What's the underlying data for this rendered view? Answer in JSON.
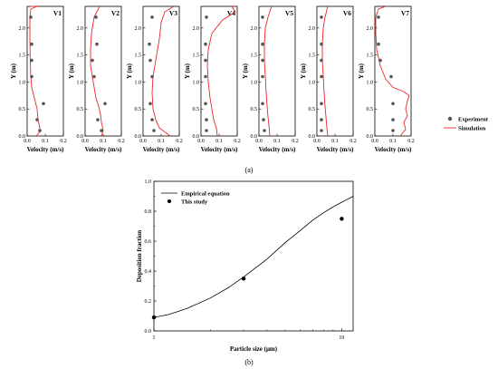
{
  "figure": {
    "caption_a": "(a)",
    "caption_b": "(b)"
  },
  "legend_top": {
    "experiment": "Experiment",
    "simulation": "Simulation"
  },
  "colors": {
    "simulation_line": "#e8262a",
    "experiment_marker": "#555555",
    "axis": "#000000"
  },
  "chart_data": [
    {
      "type": "line",
      "panels": [
        {
          "name": "V1",
          "experiment": [
            [
              0.02,
              2.2
            ],
            [
              0.025,
              1.7
            ],
            [
              0.025,
              1.4
            ],
            [
              0.025,
              1.1
            ],
            [
              0.09,
              0.6
            ],
            [
              0.055,
              0.3
            ],
            [
              0.07,
              0.1
            ]
          ],
          "simulation": [
            [
              0.015,
              2.4
            ],
            [
              0.055,
              2.4
            ],
            [
              0.02,
              2.35
            ],
            [
              0.015,
              2.2
            ],
            [
              0.015,
              1.8
            ],
            [
              0.017,
              1.4
            ],
            [
              0.02,
              1.1
            ],
            [
              0.025,
              0.9
            ],
            [
              0.04,
              0.7
            ],
            [
              0.055,
              0.5
            ],
            [
              0.06,
              0.3
            ],
            [
              0.07,
              0.15
            ],
            [
              0.07,
              0.08
            ],
            [
              0.05,
              0.0
            ]
          ]
        },
        {
          "name": "V2",
          "experiment": [
            [
              0.06,
              2.2
            ],
            [
              0.065,
              1.7
            ],
            [
              0.04,
              1.4
            ],
            [
              0.05,
              1.1
            ],
            [
              0.11,
              0.6
            ],
            [
              0.07,
              0.3
            ],
            [
              0.09,
              0.1
            ]
          ],
          "simulation": [
            [
              0.08,
              2.4
            ],
            [
              0.05,
              2.2
            ],
            [
              0.035,
              1.9
            ],
            [
              0.03,
              1.6
            ],
            [
              0.03,
              1.3
            ],
            [
              0.04,
              1.1
            ],
            [
              0.05,
              0.9
            ],
            [
              0.06,
              0.7
            ],
            [
              0.075,
              0.55
            ],
            [
              0.085,
              0.4
            ],
            [
              0.09,
              0.25
            ],
            [
              0.1,
              0.1
            ],
            [
              0.09,
              0.0
            ]
          ]
        },
        {
          "name": "V3",
          "experiment": [
            [
              0.05,
              2.2
            ],
            [
              0.035,
              1.7
            ],
            [
              0.04,
              1.4
            ],
            [
              0.05,
              1.1
            ],
            [
              0.04,
              0.6
            ],
            [
              0.05,
              0.3
            ],
            [
              0.06,
              0.1
            ]
          ],
          "simulation": [
            [
              0.17,
              2.4
            ],
            [
              0.12,
              2.3
            ],
            [
              0.1,
              2.1
            ],
            [
              0.09,
              1.8
            ],
            [
              0.07,
              1.4
            ],
            [
              0.055,
              1.1
            ],
            [
              0.05,
              0.8
            ],
            [
              0.055,
              0.5
            ],
            [
              0.07,
              0.3
            ],
            [
              0.09,
              0.15
            ],
            [
              0.13,
              0.05
            ],
            [
              0.15,
              0.0
            ]
          ]
        },
        {
          "name": "V4",
          "experiment": [
            [
              0.03,
              2.2
            ],
            [
              0.025,
              1.7
            ],
            [
              0.025,
              1.4
            ],
            [
              0.025,
              1.1
            ],
            [
              0.025,
              0.6
            ],
            [
              0.03,
              0.3
            ],
            [
              0.03,
              0.1
            ]
          ],
          "simulation": [
            [
              0.17,
              2.4
            ],
            [
              0.19,
              2.3
            ],
            [
              0.12,
              2.15
            ],
            [
              0.06,
              1.9
            ],
            [
              0.04,
              1.6
            ],
            [
              0.035,
              1.3
            ],
            [
              0.04,
              1.0
            ],
            [
              0.05,
              0.7
            ],
            [
              0.06,
              0.5
            ],
            [
              0.07,
              0.3
            ],
            [
              0.085,
              0.15
            ],
            [
              0.09,
              0.0
            ]
          ]
        },
        {
          "name": "V5",
          "experiment": [
            [
              0.02,
              2.2
            ],
            [
              0.02,
              1.7
            ],
            [
              0.02,
              1.4
            ],
            [
              0.02,
              1.1
            ],
            [
              0.02,
              0.6
            ],
            [
              0.025,
              0.3
            ],
            [
              0.03,
              0.1
            ]
          ],
          "simulation": [
            [
              0.07,
              2.4
            ],
            [
              0.05,
              2.2
            ],
            [
              0.035,
              2.0
            ],
            [
              0.03,
              1.7
            ],
            [
              0.03,
              1.4
            ],
            [
              0.035,
              1.1
            ],
            [
              0.04,
              0.8
            ],
            [
              0.045,
              0.55
            ],
            [
              0.05,
              0.35
            ],
            [
              0.055,
              0.2
            ],
            [
              0.06,
              0.0
            ]
          ]
        },
        {
          "name": "V6",
          "experiment": [
            [
              0.025,
              2.2
            ],
            [
              0.025,
              1.7
            ],
            [
              0.025,
              1.4
            ],
            [
              0.025,
              1.1
            ],
            [
              0.025,
              0.6
            ],
            [
              0.025,
              0.3
            ],
            [
              0.025,
              0.1
            ]
          ],
          "simulation": [
            [
              0.06,
              2.4
            ],
            [
              0.045,
              2.2
            ],
            [
              0.035,
              2.0
            ],
            [
              0.03,
              1.7
            ],
            [
              0.03,
              1.4
            ],
            [
              0.035,
              1.1
            ],
            [
              0.04,
              0.8
            ],
            [
              0.045,
              0.55
            ],
            [
              0.05,
              0.35
            ],
            [
              0.055,
              0.15
            ],
            [
              0.06,
              0.0
            ]
          ]
        },
        {
          "name": "V7",
          "experiment": [
            [
              0.02,
              2.2
            ],
            [
              0.02,
              1.7
            ],
            [
              0.03,
              1.4
            ],
            [
              0.09,
              1.1
            ],
            [
              0.1,
              0.6
            ],
            [
              0.1,
              0.3
            ],
            [
              0.1,
              0.1
            ]
          ],
          "simulation": [
            [
              0.06,
              2.4
            ],
            [
              0.02,
              2.35
            ],
            [
              0.005,
              2.2
            ],
            [
              0.005,
              1.9
            ],
            [
              0.01,
              1.6
            ],
            [
              0.03,
              1.3
            ],
            [
              0.06,
              1.05
            ],
            [
              0.1,
              0.9
            ],
            [
              0.16,
              0.82
            ],
            [
              0.19,
              0.75
            ],
            [
              0.18,
              0.65
            ],
            [
              0.17,
              0.5
            ],
            [
              0.18,
              0.38
            ],
            [
              0.16,
              0.25
            ],
            [
              0.17,
              0.12
            ],
            [
              0.14,
              0.0
            ]
          ]
        }
      ],
      "xlabel": "Velocity (m/s)",
      "ylabel": "Y (m)",
      "xlim": [
        0,
        0.2
      ],
      "ylim": [
        0,
        2.4
      ],
      "xticks": [
        "0.0",
        "0.1",
        "0.2"
      ],
      "yticks": [
        "0.0",
        "0.5",
        "1.0",
        "1.5",
        "2.0"
      ],
      "legend": "right"
    },
    {
      "type": "line",
      "xscale": "log",
      "xlabel": "Particle size (μm)",
      "ylabel": "Deposition fraction",
      "xlim": [
        1,
        11.5
      ],
      "ylim": [
        0,
        1.0
      ],
      "xticks": [
        "1",
        "10"
      ],
      "yticks": [
        "0.0",
        "0.2",
        "0.4",
        "0.6",
        "0.8",
        "1.0"
      ],
      "series": [
        {
          "name": "Empirical equation",
          "kind": "line",
          "x": [
            1,
            1.2,
            1.5,
            2,
            2.5,
            3,
            4,
            5,
            6,
            7,
            8,
            9,
            10,
            11.5
          ],
          "y": [
            0.09,
            0.11,
            0.15,
            0.22,
            0.29,
            0.36,
            0.48,
            0.59,
            0.67,
            0.74,
            0.79,
            0.83,
            0.86,
            0.9
          ]
        },
        {
          "name": "This study",
          "kind": "scatter",
          "x": [
            1,
            3,
            10
          ],
          "y": [
            0.09,
            0.35,
            0.75
          ]
        }
      ],
      "legend": "top-left"
    }
  ]
}
